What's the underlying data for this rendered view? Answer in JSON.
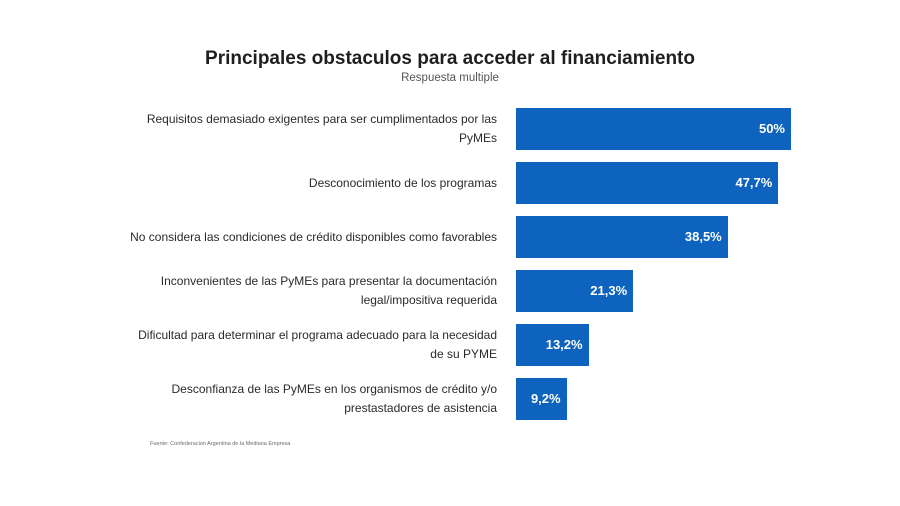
{
  "chart_data": {
    "type": "bar",
    "orientation": "horizontal",
    "title": "Principales obstaculos para acceder al financiamiento",
    "subtitle": "Respuesta multiple",
    "categories": [
      "Requisitos demasiado exigentes para ser cumplimentados por las PyMEs",
      "Desconocimiento de los programas",
      "No considera las condiciones de crédito disponibles como favorables",
      "Inconvenientes de las PyMEs para presentar la documentación legal/impositiva requerida",
      "Dificultad para determinar el programa adecuado para la necesidad de su PYME",
      "Desconfianza de las PyMEs en los organismos de crédito y/o prestastadores de asistencia"
    ],
    "values": [
      50,
      47.7,
      38.5,
      21.3,
      13.2,
      9.2
    ],
    "value_labels": [
      "50%",
      "47,7%",
      "38,5%",
      "21,3%",
      "13,2%",
      "9,2%"
    ],
    "unit": "%",
    "xlim": [
      0,
      50
    ],
    "grid": false,
    "legend": "none",
    "bar_color": "#0d63bd",
    "source": "Fuente: Confederacion Argentina de la Mediana Empresa"
  }
}
